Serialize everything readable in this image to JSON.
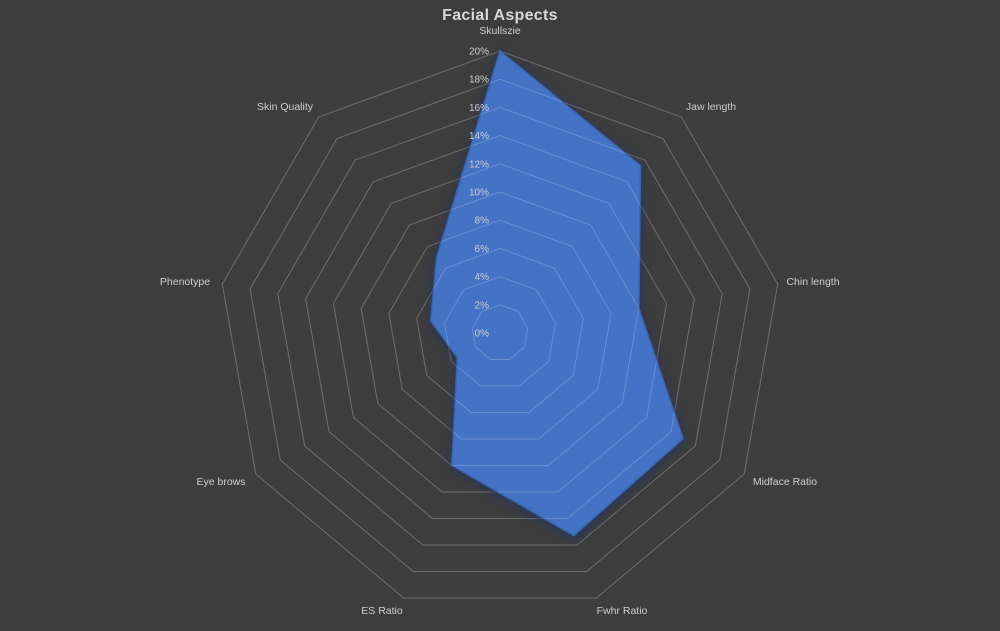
{
  "window": {
    "background_color": "#3d3d3d"
  },
  "chart_data": {
    "type": "radar",
    "title": "Facial Aspects",
    "categories": [
      "Skullszie",
      "Jaw length",
      "Chin length",
      "Midface Ratio",
      "Fwhr Ratio",
      "ES Ratio",
      "Eye brows",
      "Phenotype",
      "Skin Quality"
    ],
    "series": [
      {
        "values": [
          20,
          15.5,
          10,
          15,
          15.3,
          10,
          3.5,
          5,
          7
        ]
      }
    ],
    "axis": {
      "min": 0,
      "max": 20,
      "step": 2,
      "unit": "%",
      "tick_labels": [
        "0%",
        "2%",
        "4%",
        "6%",
        "8%",
        "10%",
        "12%",
        "14%",
        "16%",
        "18%",
        "20%"
      ]
    },
    "legend": false,
    "gridlines": true,
    "colors": {
      "fill": "#4472c4",
      "outline": "#3b64ab",
      "gridline": "#6e6e6e",
      "tick_text": "#cfcfcf",
      "category_text": "#cfcfcf",
      "title_text": "#d9d9d9",
      "background": "#3d3d3d"
    }
  }
}
